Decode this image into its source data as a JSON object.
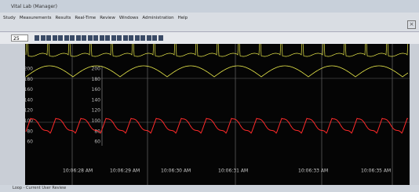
{
  "window": {
    "title": "Vital Lab (Manager)",
    "menu": [
      "Study",
      "Measurements",
      "Results",
      "Real-Time",
      "Review",
      "Windows",
      "Administration",
      "Help"
    ],
    "zoom": "25"
  },
  "left_axis": {
    "ticks": [
      "200",
      "180",
      "160",
      "140",
      "120",
      "100",
      "80",
      "60"
    ]
  },
  "mid_axis": {
    "ticks": [
      "200",
      "180",
      "160",
      "140",
      "120",
      "100",
      "80",
      "60"
    ]
  },
  "time_labels": [
    "10:06:28 AM",
    "10:06:29 AM",
    "10:06:30 AM",
    "10:06:31 AM",
    "10:06:33 AM",
    "10:06:35 AM"
  ],
  "status_bar": {
    "title": "Loop - Current User Review"
  }
}
